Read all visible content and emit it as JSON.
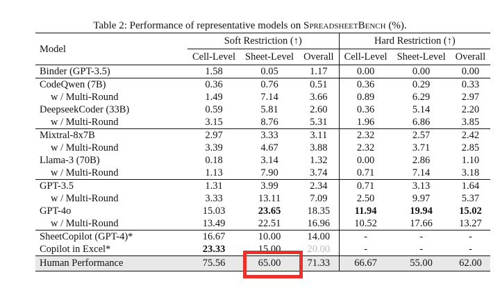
{
  "caption": {
    "prefix": "Table 2: Performance of representative models on ",
    "benchmark": "SpreadsheetBench",
    "suffix": " (%)."
  },
  "headers": {
    "model": "Model",
    "soft": "Soft Restriction (↑)",
    "hard": "Hard Restriction (↑)",
    "cell": "Cell-Level",
    "sheet": "Sheet-Level",
    "overall": "Overall"
  },
  "rows": [
    {
      "model": "Binder (GPT-3.5)",
      "values": [
        "1.58",
        "0.05",
        "1.17",
        "0.00",
        "0.00",
        "0.00"
      ]
    },
    {
      "model": "CodeQwen (7B)",
      "values": [
        "0.36",
        "0.76",
        "0.51",
        "0.36",
        "0.29",
        "0.33"
      ]
    },
    {
      "model": "w / Multi-Round",
      "values": [
        "1.49",
        "7.14",
        "3.66",
        "0.89",
        "6.29",
        "2.97"
      ]
    },
    {
      "model": "DeepseekCoder (33B)",
      "values": [
        "0.59",
        "5.81",
        "2.60",
        "0.36",
        "5.14",
        "2.20"
      ]
    },
    {
      "model": "w / Multi-Round",
      "values": [
        "3.15",
        "8.76",
        "5.31",
        "1.96",
        "6.86",
        "3.85"
      ]
    },
    {
      "model": "Mixtral-8x7B",
      "values": [
        "2.97",
        "3.33",
        "3.11",
        "2.32",
        "2.57",
        "2.42"
      ]
    },
    {
      "model": "w / Multi-Round",
      "values": [
        "3.39",
        "4.67",
        "3.88",
        "2.32",
        "3.71",
        "2.85"
      ]
    },
    {
      "model": "Llama-3 (70B)",
      "values": [
        "0.18",
        "3.14",
        "1.32",
        "0.00",
        "2.86",
        "1.10"
      ]
    },
    {
      "model": "w / Multi-Round",
      "values": [
        "1.13",
        "7.90",
        "3.74",
        "0.71",
        "7.14",
        "3.18"
      ]
    },
    {
      "model": "GPT-3.5",
      "values": [
        "1.31",
        "3.99",
        "2.34",
        "0.71",
        "3.13",
        "1.64"
      ]
    },
    {
      "model": "w / Multi-Round",
      "values": [
        "3.33",
        "13.11",
        "7.09",
        "2.50",
        "9.97",
        "5.37"
      ]
    },
    {
      "model": "GPT-4o",
      "values": [
        "15.03",
        "23.65",
        "18.35",
        "11.94",
        "19.94",
        "15.02"
      ]
    },
    {
      "model": "w / Multi-Round",
      "values": [
        "13.49",
        "22.51",
        "16.96",
        "10.52",
        "17.66",
        "13.27"
      ]
    },
    {
      "model": "SheetCopilot (GPT-4)*",
      "values": [
        "16.67",
        "10.00",
        "14.00",
        "-",
        "-",
        "-"
      ]
    },
    {
      "model": "Copilot in Excel*",
      "values": [
        "23.33",
        "15.00",
        "20.00",
        "-",
        "-",
        "-"
      ]
    },
    {
      "model": "Human Performance",
      "values": [
        "75.56",
        "65.00",
        "71.33",
        "66.67",
        "55.00",
        "62.00"
      ]
    }
  ],
  "highlight_color": "#e8312b"
}
